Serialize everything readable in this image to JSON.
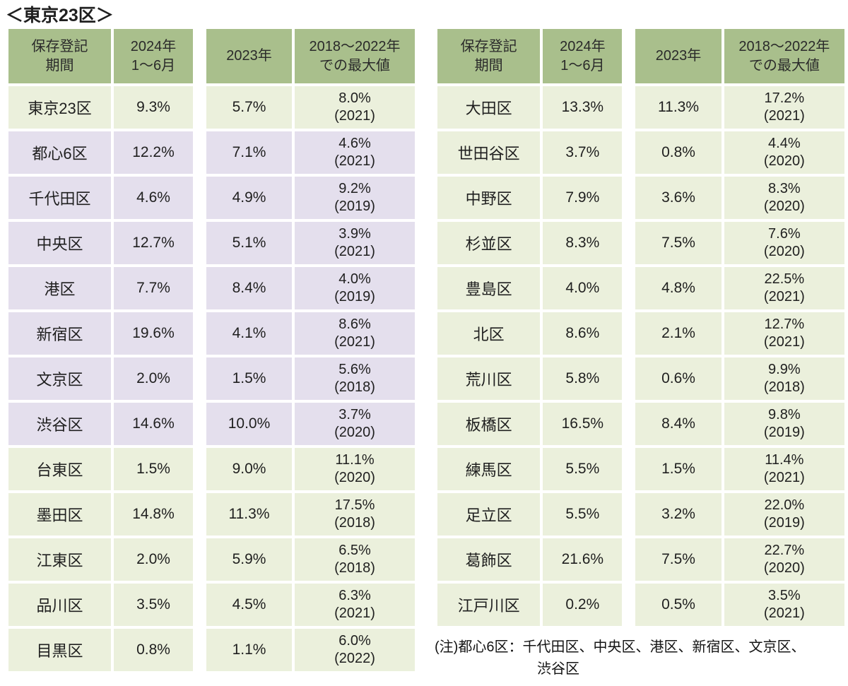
{
  "title": "＜東京23区＞",
  "colors": {
    "header_bg": "#a9bf8c",
    "green_row_bg": "#ebf0dc",
    "purple_row_bg": "#e4dfed",
    "text": "#1f1f1f"
  },
  "header_columns": [
    [
      "保存登記",
      "期間"
    ],
    [
      "2024年",
      "1～6月"
    ],
    [
      "2023年"
    ],
    [
      "2018～2022年",
      "での最大値"
    ]
  ],
  "left_table": {
    "rows": [
      {
        "name": "東京23区",
        "v2024": "9.3%",
        "v2023": "5.7%",
        "max": "8.0%",
        "max_year": "(2021)",
        "tint": "green"
      },
      {
        "name": "都心6区",
        "v2024": "12.2%",
        "v2023": "7.1%",
        "max": "4.6%",
        "max_year": "(2021)",
        "tint": "purple"
      },
      {
        "name": "千代田区",
        "v2024": "4.6%",
        "v2023": "4.9%",
        "max": "9.2%",
        "max_year": "(2019)",
        "tint": "purple"
      },
      {
        "name": "中央区",
        "v2024": "12.7%",
        "v2023": "5.1%",
        "max": "3.9%",
        "max_year": "(2021)",
        "tint": "purple"
      },
      {
        "name": "港区",
        "v2024": "7.7%",
        "v2023": "8.4%",
        "max": "4.0%",
        "max_year": "(2019)",
        "tint": "purple"
      },
      {
        "name": "新宿区",
        "v2024": "19.6%",
        "v2023": "4.1%",
        "max": "8.6%",
        "max_year": "(2021)",
        "tint": "purple"
      },
      {
        "name": "文京区",
        "v2024": "2.0%",
        "v2023": "1.5%",
        "max": "5.6%",
        "max_year": "(2018)",
        "tint": "purple"
      },
      {
        "name": "渋谷区",
        "v2024": "14.6%",
        "v2023": "10.0%",
        "max": "3.7%",
        "max_year": "(2020)",
        "tint": "purple"
      },
      {
        "name": "台東区",
        "v2024": "1.5%",
        "v2023": "9.0%",
        "max": "11.1%",
        "max_year": "(2020)",
        "tint": "green"
      },
      {
        "name": "墨田区",
        "v2024": "14.8%",
        "v2023": "11.3%",
        "max": "17.5%",
        "max_year": "(2018)",
        "tint": "green"
      },
      {
        "name": "江東区",
        "v2024": "2.0%",
        "v2023": "5.9%",
        "max": "6.5%",
        "max_year": "(2018)",
        "tint": "green"
      },
      {
        "name": "品川区",
        "v2024": "3.5%",
        "v2023": "4.5%",
        "max": "6.3%",
        "max_year": "(2021)",
        "tint": "green"
      },
      {
        "name": "目黒区",
        "v2024": "0.8%",
        "v2023": "1.1%",
        "max": "6.0%",
        "max_year": "(2022)",
        "tint": "green"
      }
    ]
  },
  "right_table": {
    "rows": [
      {
        "name": "大田区",
        "v2024": "13.3%",
        "v2023": "11.3%",
        "max": "17.2%",
        "max_year": "(2021)",
        "tint": "green"
      },
      {
        "name": "世田谷区",
        "v2024": "3.7%",
        "v2023": "0.8%",
        "max": "4.4%",
        "max_year": "(2020)",
        "tint": "green"
      },
      {
        "name": "中野区",
        "v2024": "7.9%",
        "v2023": "3.6%",
        "max": "8.3%",
        "max_year": "(2020)",
        "tint": "green"
      },
      {
        "name": "杉並区",
        "v2024": "8.3%",
        "v2023": "7.5%",
        "max": "7.6%",
        "max_year": "(2020)",
        "tint": "green"
      },
      {
        "name": "豊島区",
        "v2024": "4.0%",
        "v2023": "4.8%",
        "max": "22.5%",
        "max_year": "(2021)",
        "tint": "green"
      },
      {
        "name": "北区",
        "v2024": "8.6%",
        "v2023": "2.1%",
        "max": "12.7%",
        "max_year": "(2021)",
        "tint": "green"
      },
      {
        "name": "荒川区",
        "v2024": "5.8%",
        "v2023": "0.6%",
        "max": "9.9%",
        "max_year": "(2018)",
        "tint": "green"
      },
      {
        "name": "板橋区",
        "v2024": "16.5%",
        "v2023": "8.4%",
        "max": "9.8%",
        "max_year": "(2019)",
        "tint": "green"
      },
      {
        "name": "練馬区",
        "v2024": "5.5%",
        "v2023": "1.5%",
        "max": "11.4%",
        "max_year": "(2021)",
        "tint": "green"
      },
      {
        "name": "足立区",
        "v2024": "5.5%",
        "v2023": "3.2%",
        "max": "22.0%",
        "max_year": "(2019)",
        "tint": "green"
      },
      {
        "name": "葛飾区",
        "v2024": "21.6%",
        "v2023": "7.5%",
        "max": "22.7%",
        "max_year": "(2020)",
        "tint": "green"
      },
      {
        "name": "江戸川区",
        "v2024": "0.2%",
        "v2023": "0.5%",
        "max": "3.5%",
        "max_year": "(2021)",
        "tint": "green"
      }
    ]
  },
  "note": {
    "line1": "(注)都心6区：千代田区、中央区、港区、新宿区、文京区、",
    "line2": "渋谷区"
  }
}
